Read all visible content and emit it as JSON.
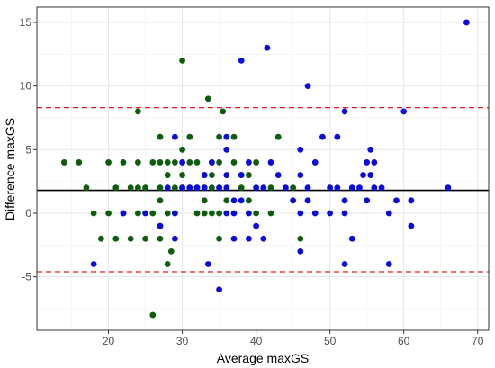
{
  "chart_data": {
    "type": "scatter",
    "title": "",
    "xlabel": "Average maxGS",
    "ylabel": "Difference maxGS",
    "xlim": [
      10.3,
      71.5
    ],
    "ylim": [
      -9.2,
      16.2
    ],
    "x_ticks": [
      20,
      30,
      40,
      50,
      60,
      70
    ],
    "y_ticks": [
      -5,
      0,
      5,
      10,
      15
    ],
    "x_tick_labels": [
      "20",
      "30",
      "40",
      "50",
      "60",
      "70"
    ],
    "y_tick_labels": [
      "-5",
      "0",
      "5",
      "10",
      "15"
    ],
    "grid": true,
    "legend": "none",
    "reference_lines": [
      {
        "kind": "mean",
        "y": 1.8,
        "color": "#000000",
        "style": "solid"
      },
      {
        "kind": "upper-limit",
        "y": 8.3,
        "color": "#e31a1c",
        "style": "dashed"
      },
      {
        "kind": "lower-limit",
        "y": -4.6,
        "color": "#e31a1c",
        "style": "dashed"
      }
    ],
    "series": [
      {
        "color": "#0e5c0e",
        "points": [
          [
            14,
            4
          ],
          [
            16,
            4
          ],
          [
            17,
            2
          ],
          [
            18,
            0
          ],
          [
            19,
            -2
          ],
          [
            20,
            4
          ],
          [
            20,
            0
          ],
          [
            21,
            2
          ],
          [
            21,
            -2
          ],
          [
            22,
            4
          ],
          [
            22,
            0
          ],
          [
            23,
            2
          ],
          [
            23,
            -2
          ],
          [
            24,
            8
          ],
          [
            24,
            4
          ],
          [
            24,
            2
          ],
          [
            24,
            0
          ],
          [
            25,
            2
          ],
          [
            25,
            -2
          ],
          [
            26,
            4
          ],
          [
            26,
            0
          ],
          [
            26,
            -8
          ],
          [
            27,
            6
          ],
          [
            27,
            4
          ],
          [
            27,
            2
          ],
          [
            27,
            -1
          ],
          [
            27,
            1
          ],
          [
            27,
            -2
          ],
          [
            28,
            4
          ],
          [
            28,
            3
          ],
          [
            28,
            0
          ],
          [
            28,
            -4
          ],
          [
            28.5,
            -3
          ],
          [
            29,
            2
          ],
          [
            29,
            4
          ],
          [
            29,
            0
          ],
          [
            30,
            12
          ],
          [
            30,
            2
          ],
          [
            30,
            3
          ],
          [
            30,
            5
          ],
          [
            31,
            6
          ],
          [
            31,
            2
          ],
          [
            31,
            4
          ],
          [
            32,
            4
          ],
          [
            32,
            2
          ],
          [
            32,
            0
          ],
          [
            33,
            3
          ],
          [
            33,
            2
          ],
          [
            33,
            1
          ],
          [
            33,
            0
          ],
          [
            33.5,
            9
          ],
          [
            34,
            2
          ],
          [
            34,
            4
          ],
          [
            34,
            0
          ],
          [
            34,
            3
          ],
          [
            35,
            6
          ],
          [
            35,
            2
          ],
          [
            35,
            4
          ],
          [
            35,
            0
          ],
          [
            35,
            -2
          ],
          [
            35.5,
            8
          ],
          [
            36,
            1
          ],
          [
            37,
            6
          ],
          [
            37,
            4
          ],
          [
            38,
            2
          ],
          [
            38,
            3
          ],
          [
            39,
            1
          ],
          [
            39,
            3
          ],
          [
            40,
            4
          ],
          [
            40,
            0
          ],
          [
            42,
            2
          ],
          [
            42,
            0
          ],
          [
            43,
            6
          ],
          [
            45,
            2
          ],
          [
            46,
            -2
          ]
        ]
      },
      {
        "color": "#0a0adc",
        "points": [
          [
            18,
            -4
          ],
          [
            22,
            0
          ],
          [
            25,
            0
          ],
          [
            27,
            -1
          ],
          [
            28,
            2
          ],
          [
            29,
            6
          ],
          [
            29,
            0
          ],
          [
            29,
            -2
          ],
          [
            30,
            4
          ],
          [
            30,
            2
          ],
          [
            31,
            2
          ],
          [
            32,
            2
          ],
          [
            33,
            2
          ],
          [
            33,
            3
          ],
          [
            33.5,
            -4
          ],
          [
            34,
            4
          ],
          [
            35,
            2
          ],
          [
            35,
            -6
          ],
          [
            36,
            6
          ],
          [
            36,
            5
          ],
          [
            36,
            3
          ],
          [
            36,
            2
          ],
          [
            36,
            0
          ],
          [
            37,
            1
          ],
          [
            37,
            0
          ],
          [
            37,
            -2
          ],
          [
            38,
            12
          ],
          [
            38,
            3
          ],
          [
            38,
            1
          ],
          [
            39,
            4
          ],
          [
            39,
            0
          ],
          [
            39,
            -2
          ],
          [
            40,
            2
          ],
          [
            40,
            -1
          ],
          [
            41,
            2
          ],
          [
            41,
            -2
          ],
          [
            41.5,
            13
          ],
          [
            42,
            4
          ],
          [
            43,
            3
          ],
          [
            44,
            2
          ],
          [
            45,
            1
          ],
          [
            46,
            5
          ],
          [
            46,
            3
          ],
          [
            46,
            0
          ],
          [
            46,
            -3
          ],
          [
            47,
            10
          ],
          [
            47,
            2
          ],
          [
            47,
            1
          ],
          [
            48,
            4
          ],
          [
            48,
            0
          ],
          [
            49,
            6
          ],
          [
            50,
            2
          ],
          [
            50,
            0
          ],
          [
            51,
            6
          ],
          [
            51,
            2
          ],
          [
            52,
            8
          ],
          [
            52,
            1
          ],
          [
            52,
            0
          ],
          [
            52,
            -4
          ],
          [
            53,
            2
          ],
          [
            53,
            -2
          ],
          [
            54,
            2
          ],
          [
            54.5,
            3
          ],
          [
            55,
            4
          ],
          [
            55,
            1
          ],
          [
            55.5,
            5
          ],
          [
            55.5,
            3
          ],
          [
            56,
            2
          ],
          [
            56,
            4
          ],
          [
            57,
            2
          ],
          [
            58,
            0
          ],
          [
            58,
            -4
          ],
          [
            59,
            1
          ],
          [
            60,
            8
          ],
          [
            61,
            1
          ],
          [
            61,
            -1
          ],
          [
            66,
            2
          ],
          [
            68.5,
            15
          ]
        ]
      }
    ]
  }
}
